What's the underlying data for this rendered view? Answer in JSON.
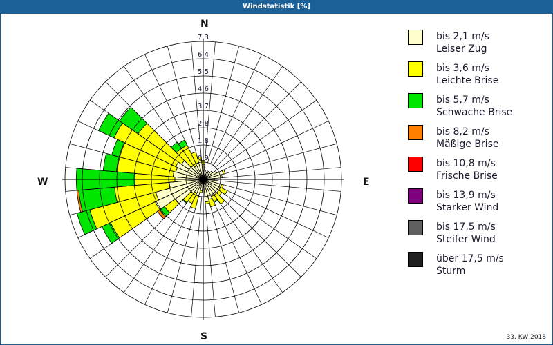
{
  "header": {
    "title": "Windstatistik [%]"
  },
  "footer": {
    "week": "33. KW 2018"
  },
  "compass": {
    "n": "N",
    "e": "E",
    "s": "S",
    "w": "W"
  },
  "legend": [
    {
      "range": "bis 2,1 m/s",
      "name": "Leiser Zug",
      "color": "#ffffcc"
    },
    {
      "range": "bis 3,6 m/s",
      "name": "Leichte Brise",
      "color": "#ffff00"
    },
    {
      "range": "bis 5,7 m/s",
      "name": "Schwache Brise",
      "color": "#00e600"
    },
    {
      "range": "bis 8,2 m/s",
      "name": "Mäßige Brise",
      "color": "#ff8000"
    },
    {
      "range": "bis 10,8 m/s",
      "name": "Frische Brise",
      "color": "#ff0000"
    },
    {
      "range": "bis 13,9 m/s",
      "name": "Starker Wind",
      "color": "#800080"
    },
    {
      "range": "bis 17,5 m/s",
      "name": "Steifer Wind",
      "color": "#606060"
    },
    {
      "range": "über 17,5 m/s",
      "name": "Sturm",
      "color": "#202020"
    }
  ],
  "chart_data": {
    "type": "polar-bar",
    "title": "Windstatistik [%]",
    "subtitle": "33. KW 2018",
    "radial_ticks": [
      "0,9",
      "1,8",
      "2,8",
      "3,7",
      "4,6",
      "5,5",
      "6,4",
      "7,3"
    ],
    "r_max": 7.3,
    "sector_width_deg": 10,
    "series_names": [
      "Leiser Zug",
      "Leichte Brise",
      "Schwache Brise",
      "Mäßige Brise"
    ],
    "sectors": [
      {
        "dir": 0,
        "cum": [
          0.8,
          1.0
        ]
      },
      {
        "dir": 10,
        "cum": [
          0.5
        ]
      },
      {
        "dir": 20,
        "cum": [
          0.4
        ]
      },
      {
        "dir": 30,
        "cum": [
          0.5
        ]
      },
      {
        "dir": 40,
        "cum": [
          0.5
        ]
      },
      {
        "dir": 50,
        "cum": [
          0.6
        ]
      },
      {
        "dir": 60,
        "cum": [
          0.8
        ]
      },
      {
        "dir": 70,
        "cum": [
          1.1,
          1.2
        ]
      },
      {
        "dir": 80,
        "cum": [
          1.0
        ]
      },
      {
        "dir": 90,
        "cum": [
          0.6
        ]
      },
      {
        "dir": 100,
        "cum": [
          0.8
        ]
      },
      {
        "dir": 110,
        "cum": [
          1.0,
          1.1
        ]
      },
      {
        "dir": 120,
        "cum": [
          1.0,
          1.4
        ]
      },
      {
        "dir": 130,
        "cum": [
          1.0,
          1.2
        ]
      },
      {
        "dir": 140,
        "cum": [
          1.0,
          1.6
        ]
      },
      {
        "dir": 150,
        "cum": [
          1.0,
          1.3,
          1.35
        ]
      },
      {
        "dir": 160,
        "cum": [
          1.1,
          1.5
        ]
      },
      {
        "dir": 170,
        "cum": [
          1.2,
          1.3
        ]
      },
      {
        "dir": 180,
        "cum": [
          0.4
        ]
      },
      {
        "dir": 190,
        "cum": [
          0.6,
          0.7
        ]
      },
      {
        "dir": 200,
        "cum": [
          0.9,
          1.6
        ]
      },
      {
        "dir": 210,
        "cum": [
          0.8,
          1.4
        ]
      },
      {
        "dir": 220,
        "cum": [
          0.9,
          1.5,
          1.55
        ]
      },
      {
        "dir": 230,
        "cum": [
          1.8,
          2.5,
          2.8,
          2.95
        ]
      },
      {
        "dir": 240,
        "cum": [
          2.8,
          5.4,
          5.9
        ]
      },
      {
        "dir": 250,
        "cum": [
          2.6,
          6.2,
          6.9
        ]
      },
      {
        "dir": 260,
        "cum": [
          1.8,
          4.7,
          6.6,
          6.7
        ]
      },
      {
        "dir": 270,
        "cum": [
          1.5,
          3.6,
          6.7
        ]
      },
      {
        "dir": 280,
        "cum": [
          1.6,
          4.6,
          5.3
        ]
      },
      {
        "dir": 290,
        "cum": [
          1.5,
          4.6,
          5.0
        ]
      },
      {
        "dir": 300,
        "cum": [
          1.6,
          5.2,
          6.1
        ]
      },
      {
        "dir": 310,
        "cum": [
          1.4,
          4.2,
          5.4
        ]
      },
      {
        "dir": 320,
        "cum": [
          0.9,
          2.0,
          2.4
        ]
      },
      {
        "dir": 330,
        "cum": [
          0.8,
          2.0,
          2.3
        ]
      },
      {
        "dir": 340,
        "cum": [
          0.9,
          1.5
        ]
      },
      {
        "dir": 350,
        "cum": [
          1.0,
          1.2
        ]
      }
    ]
  }
}
